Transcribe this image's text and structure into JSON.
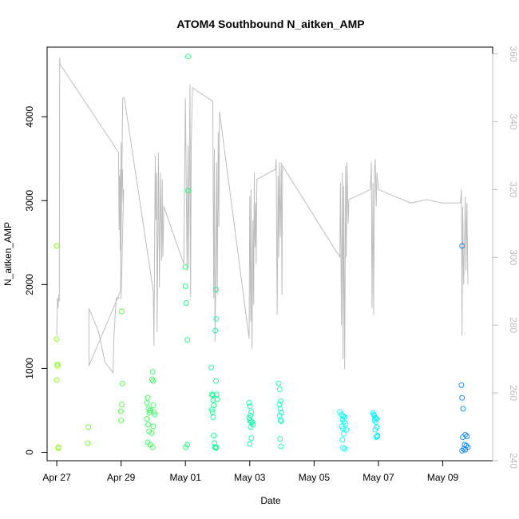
{
  "chart_data": {
    "type": "scatter",
    "title": "ATOM4 Southbound N_aitken_AMP",
    "xlabel": "Date",
    "ylabel": "N_aitken_AMP",
    "x_ticks": [
      "Apr 27",
      "Apr 29",
      "May 01",
      "May 03",
      "May 05",
      "May 07",
      "May 09"
    ],
    "xlim": [
      -0.3,
      13.55
    ],
    "ylim": [
      -100,
      4830
    ],
    "y_ticks": [
      0,
      1000,
      2000,
      3000,
      4000
    ],
    "y2lim": [
      240,
      362
    ],
    "y2_ticks": [
      240,
      260,
      280,
      300,
      320,
      340,
      360
    ],
    "grid": false,
    "legend": "none",
    "point_series": {
      "name": "",
      "units": "days since Apr 27",
      "points": [
        [
          0.0,
          2460
        ],
        [
          0.0,
          1350
        ],
        [
          0.02,
          1050
        ],
        [
          0.02,
          1030
        ],
        [
          0.0,
          860
        ],
        [
          0.05,
          60
        ],
        [
          0.05,
          50
        ],
        [
          0.98,
          300
        ],
        [
          0.96,
          110
        ],
        [
          2.02,
          1680
        ],
        [
          2.04,
          820
        ],
        [
          2.02,
          570
        ],
        [
          1.99,
          490
        ],
        [
          2.0,
          380
        ],
        [
          2.8,
          590
        ],
        [
          2.83,
          650
        ],
        [
          2.85,
          520
        ],
        [
          2.9,
          500
        ],
        [
          2.88,
          470
        ],
        [
          2.8,
          400
        ],
        [
          2.84,
          330
        ],
        [
          2.87,
          250
        ],
        [
          2.95,
          230
        ],
        [
          2.83,
          120
        ],
        [
          2.9,
          90
        ],
        [
          2.98,
          960
        ],
        [
          2.96,
          870
        ],
        [
          2.99,
          850
        ],
        [
          3.0,
          560
        ],
        [
          3.02,
          480
        ],
        [
          3.05,
          450
        ],
        [
          3.0,
          310
        ],
        [
          2.98,
          60
        ],
        [
          4.08,
          4720
        ],
        [
          4.08,
          3120
        ],
        [
          4.0,
          2210
        ],
        [
          4.0,
          1980
        ],
        [
          4.02,
          1780
        ],
        [
          4.06,
          1340
        ],
        [
          4.06,
          90
        ],
        [
          4.01,
          60
        ],
        [
          4.8,
          1010
        ],
        [
          4.82,
          690
        ],
        [
          4.85,
          680
        ],
        [
          4.86,
          620
        ],
        [
          4.88,
          560
        ],
        [
          4.82,
          510
        ],
        [
          4.84,
          480
        ],
        [
          4.86,
          420
        ],
        [
          4.88,
          200
        ],
        [
          4.9,
          110
        ],
        [
          4.92,
          60
        ],
        [
          4.95,
          50
        ],
        [
          4.95,
          1940
        ],
        [
          4.96,
          1590
        ],
        [
          4.93,
          1450
        ],
        [
          4.95,
          850
        ],
        [
          4.97,
          690
        ],
        [
          4.99,
          630
        ],
        [
          4.96,
          60
        ],
        [
          5.98,
          590
        ],
        [
          6.0,
          550
        ],
        [
          6.05,
          480
        ],
        [
          6.02,
          440
        ],
        [
          5.98,
          410
        ],
        [
          6.0,
          380
        ],
        [
          6.04,
          360
        ],
        [
          6.08,
          360
        ],
        [
          6.1,
          330
        ],
        [
          6.03,
          300
        ],
        [
          6.05,
          170
        ],
        [
          6.0,
          100
        ],
        [
          6.9,
          820
        ],
        [
          6.93,
          750
        ],
        [
          6.96,
          610
        ],
        [
          6.92,
          570
        ],
        [
          6.95,
          520
        ],
        [
          6.98,
          470
        ],
        [
          6.93,
          440
        ],
        [
          6.95,
          380
        ],
        [
          6.98,
          370
        ],
        [
          6.94,
          160
        ],
        [
          6.97,
          70
        ],
        [
          8.8,
          480
        ],
        [
          8.85,
          450
        ],
        [
          8.9,
          430
        ],
        [
          8.95,
          420
        ],
        [
          8.88,
          390
        ],
        [
          8.93,
          360
        ],
        [
          8.98,
          340
        ],
        [
          8.86,
          310
        ],
        [
          8.9,
          280
        ],
        [
          9.0,
          270
        ],
        [
          8.92,
          220
        ],
        [
          8.88,
          150
        ],
        [
          8.9,
          50
        ],
        [
          8.96,
          40
        ],
        [
          9.83,
          470
        ],
        [
          9.85,
          450
        ],
        [
          9.87,
          440
        ],
        [
          9.9,
          410
        ],
        [
          9.94,
          400
        ],
        [
          9.88,
          380
        ],
        [
          9.92,
          360
        ],
        [
          9.95,
          300
        ],
        [
          9.9,
          270
        ],
        [
          9.97,
          200
        ],
        [
          9.93,
          180
        ],
        [
          9.96,
          190
        ],
        [
          12.6,
          2460
        ],
        [
          12.58,
          800
        ],
        [
          12.6,
          650
        ],
        [
          12.63,
          520
        ],
        [
          12.7,
          210
        ],
        [
          12.75,
          190
        ],
        [
          12.62,
          180
        ],
        [
          12.68,
          90
        ],
        [
          12.73,
          80
        ],
        [
          12.78,
          60
        ],
        [
          12.65,
          40
        ],
        [
          12.7,
          30
        ],
        [
          12.6,
          20
        ]
      ]
    },
    "line_series": {
      "name": "",
      "axis": "right",
      "units": "days since Apr 27",
      "points": [
        [
          0.0,
          277
        ],
        [
          0.02,
          288
        ],
        [
          0.04,
          285
        ],
        [
          0.06,
          289
        ],
        [
          0.08,
          287
        ],
        [
          0.09,
          359
        ],
        [
          0.1,
          357
        ],
        [
          1.92,
          331
        ],
        [
          1.94,
          308
        ],
        [
          1.95,
          324
        ],
        [
          1.96,
          318
        ],
        [
          1.97,
          302
        ],
        [
          1.98,
          326
        ],
        [
          1.99,
          294
        ],
        [
          2.0,
          334
        ],
        [
          2.02,
          320
        ],
        [
          2.04,
          326
        ],
        [
          2.06,
          316
        ],
        [
          2.08,
          320
        ],
        [
          2.0,
          288
        ],
        [
          1.85,
          288
        ],
        [
          1.78,
          277
        ],
        [
          1.75,
          266
        ],
        [
          1.5,
          269
        ],
        [
          1.3,
          278
        ],
        [
          1.0,
          285
        ],
        [
          1.0,
          268
        ],
        [
          1.98,
          290
        ],
        [
          2.05,
          347
        ],
        [
          2.1,
          347
        ],
        [
          3.0,
          290
        ],
        [
          3.02,
          274
        ],
        [
          3.06,
          330
        ],
        [
          3.08,
          311
        ],
        [
          3.1,
          325
        ],
        [
          3.12,
          278
        ],
        [
          3.16,
          331
        ],
        [
          3.19,
          291
        ],
        [
          3.22,
          325
        ],
        [
          3.26,
          299
        ],
        [
          3.28,
          323
        ],
        [
          3.3,
          300
        ],
        [
          3.33,
          315
        ],
        [
          3.95,
          298
        ],
        [
          4.0,
          347
        ],
        [
          4.05,
          296
        ],
        [
          4.08,
          333
        ],
        [
          4.1,
          297
        ],
        [
          4.14,
          351
        ],
        [
          4.16,
          288
        ],
        [
          4.18,
          333
        ],
        [
          4.2,
          343
        ],
        [
          4.22,
          350
        ],
        [
          4.85,
          346
        ],
        [
          4.88,
          288
        ],
        [
          4.9,
          332
        ],
        [
          4.92,
          275
        ],
        [
          4.95,
          300
        ],
        [
          4.97,
          328
        ],
        [
          4.99,
          289
        ],
        [
          5.0,
          302
        ],
        [
          5.02,
          337
        ],
        [
          5.04,
          309
        ],
        [
          5.06,
          343
        ],
        [
          5.98,
          276
        ],
        [
          6.0,
          318
        ],
        [
          6.03,
          281
        ],
        [
          6.04,
          320
        ],
        [
          6.07,
          273
        ],
        [
          6.1,
          311
        ],
        [
          6.12,
          286
        ],
        [
          6.14,
          325
        ],
        [
          6.16,
          303
        ],
        [
          6.18,
          316
        ],
        [
          6.2,
          298
        ],
        [
          6.22,
          323
        ],
        [
          6.8,
          326
        ],
        [
          6.82,
          329
        ],
        [
          6.85,
          283
        ],
        [
          6.88,
          324
        ],
        [
          6.9,
          300
        ],
        [
          6.92,
          328
        ],
        [
          6.95,
          306
        ],
        [
          6.98,
          328
        ],
        [
          7.0,
          289
        ],
        [
          7.02,
          327
        ],
        [
          8.8,
          300
        ],
        [
          8.82,
          322
        ],
        [
          8.85,
          280
        ],
        [
          8.88,
          325
        ],
        [
          8.9,
          270
        ],
        [
          8.92,
          321
        ],
        [
          8.95,
          267
        ],
        [
          8.98,
          327
        ],
        [
          9.0,
          300
        ],
        [
          9.02,
          328
        ],
        [
          9.04,
          320
        ],
        [
          9.06,
          310
        ],
        [
          9.08,
          317
        ],
        [
          9.75,
          320
        ],
        [
          9.78,
          328
        ],
        [
          9.8,
          285
        ],
        [
          9.83,
          322
        ],
        [
          9.85,
          283
        ],
        [
          9.88,
          326
        ],
        [
          9.9,
          329
        ],
        [
          9.93,
          315
        ],
        [
          9.95,
          325
        ],
        [
          10.0,
          320
        ],
        [
          10.5,
          318
        ],
        [
          11.0,
          316
        ],
        [
          11.5,
          317
        ],
        [
          12.0,
          316
        ],
        [
          12.55,
          316
        ],
        [
          12.58,
          320
        ],
        [
          12.6,
          277
        ],
        [
          12.62,
          315
        ],
        [
          12.65,
          292
        ],
        [
          12.7,
          318
        ],
        [
          12.72,
          296
        ],
        [
          12.75,
          316
        ],
        [
          12.78,
          292
        ]
      ]
    },
    "colors": {
      "line": "#bdbdbd",
      "axes": "#000000",
      "right_axis": "#bdbdbd",
      "point_gradient_start": "#7fff00",
      "point_gradient_mid": "#00ff7f",
      "point_gradient_cyan": "#00ffff",
      "point_gradient_end": "#0080ff"
    }
  }
}
